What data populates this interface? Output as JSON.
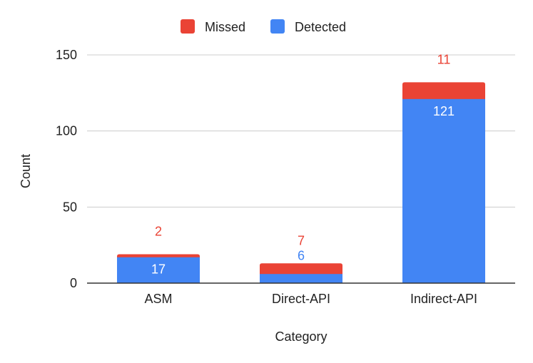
{
  "chart_data": {
    "type": "bar",
    "stacked": true,
    "title": "",
    "xlabel": "Category",
    "ylabel": "Count",
    "ylim": [
      0,
      160
    ],
    "yticks": [
      0,
      50,
      100,
      150
    ],
    "categories": [
      "ASM",
      "Direct-API",
      "Indirect-API"
    ],
    "series": [
      {
        "name": "Detected",
        "color": "#4285F4",
        "values": [
          17,
          6,
          121
        ]
      },
      {
        "name": "Missed",
        "color": "#EA4335",
        "values": [
          2,
          7,
          11
        ]
      }
    ],
    "legend": {
      "position": "top",
      "order": [
        "Missed",
        "Detected"
      ]
    },
    "grid": true
  }
}
